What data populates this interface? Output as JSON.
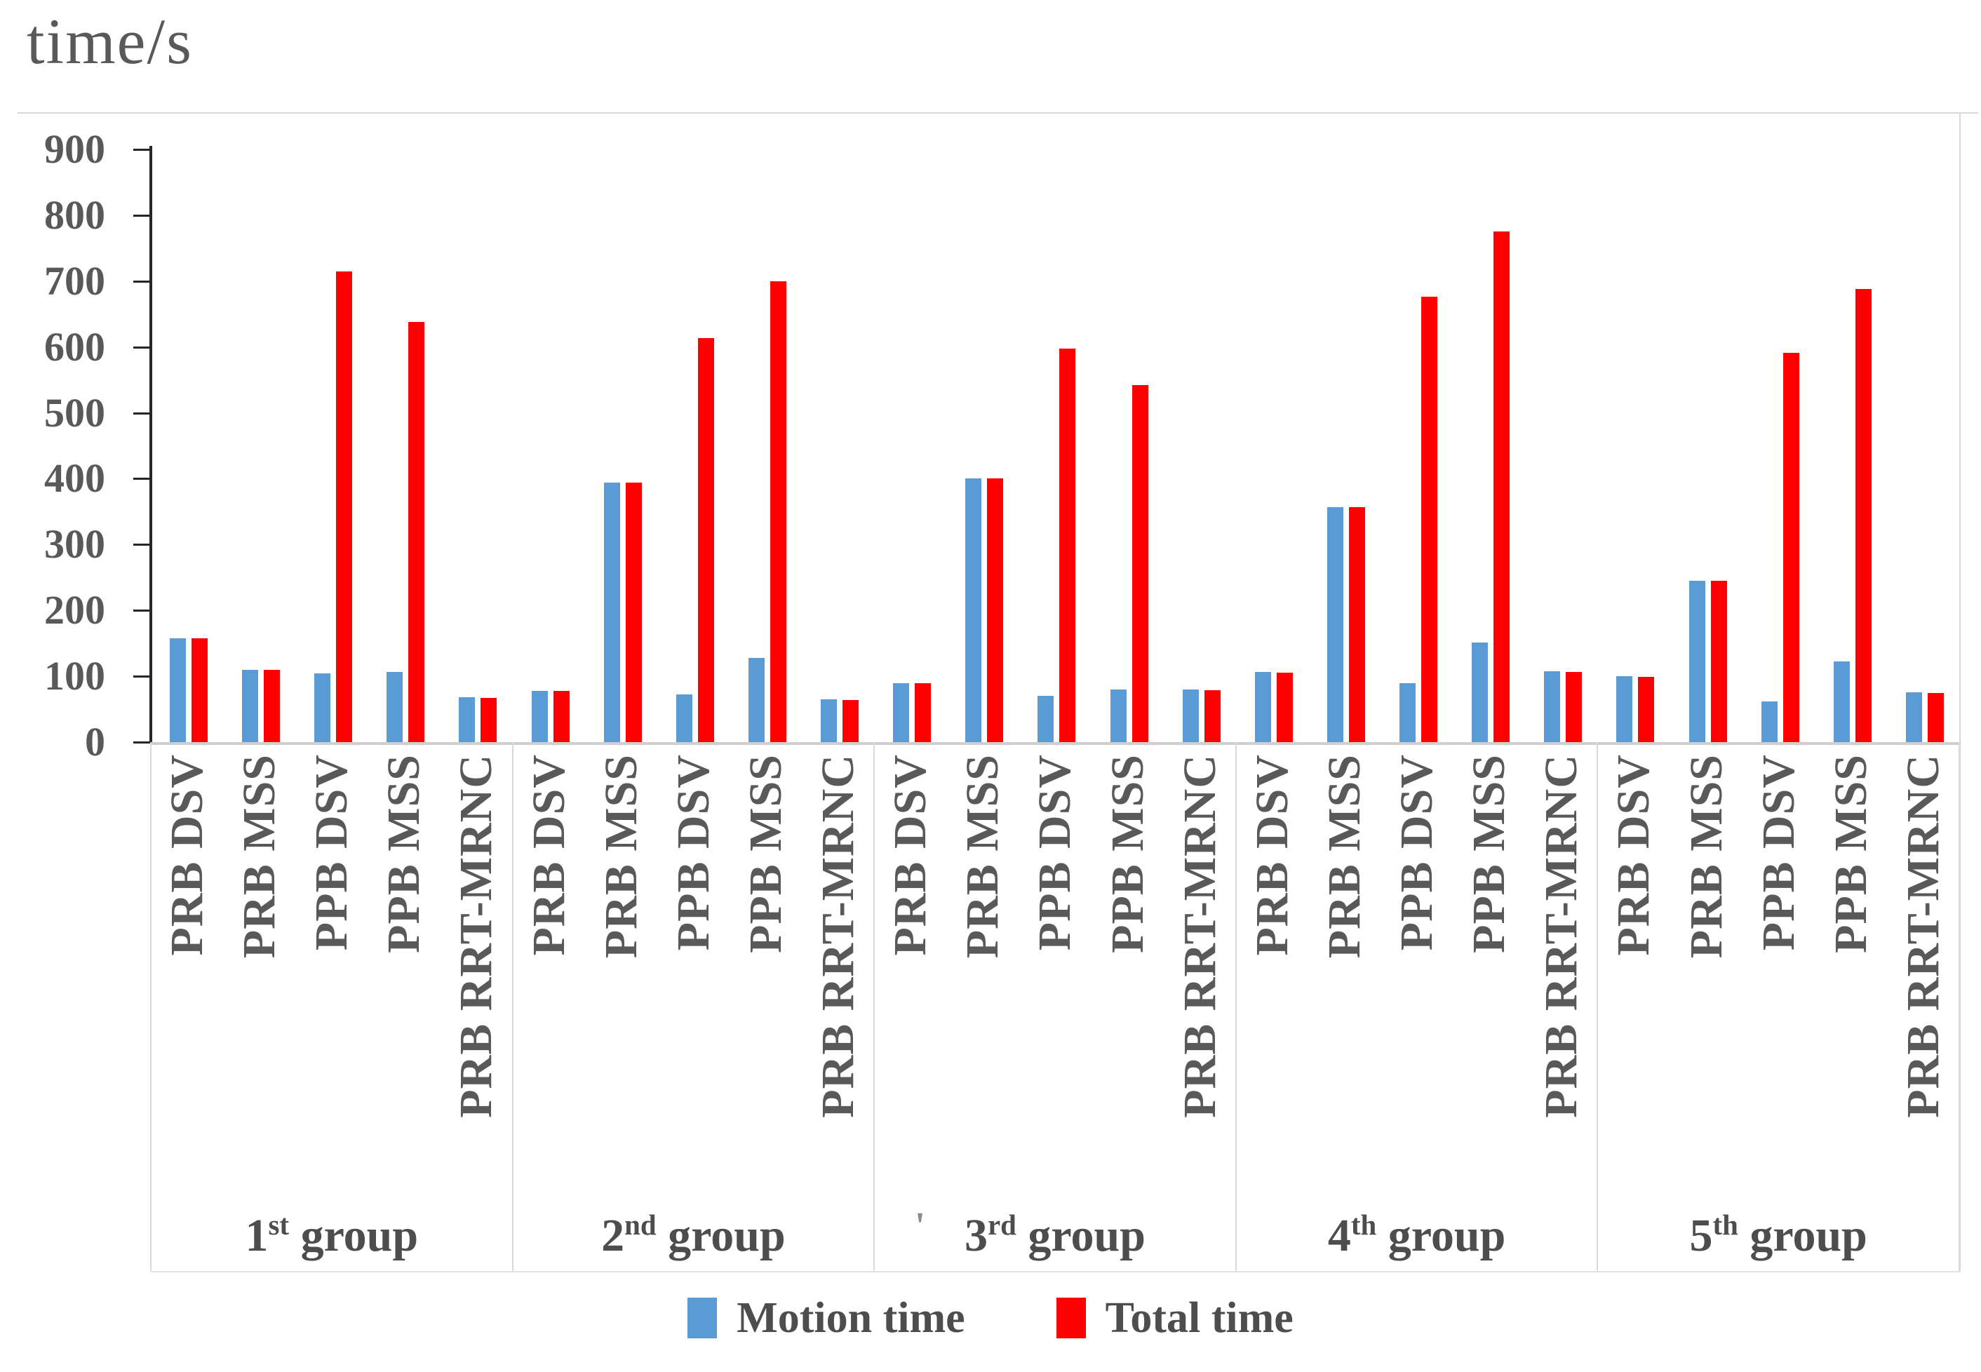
{
  "title": "time/s",
  "legend": {
    "items": [
      {
        "label": "Motion time",
        "color": "#5B9BD5"
      },
      {
        "label": "Total time",
        "color": "#FF0000"
      }
    ],
    "position": "bottom"
  },
  "colors": {
    "motion_time": "#5B9BD5",
    "total_time": "#FF0000",
    "axis": "#262626",
    "grid_light": "#D9D9D9",
    "text_gray": "#595959",
    "text_dark": "#4D4D4D",
    "background": "#FFFFFF"
  },
  "artifact_mark": "'",
  "chart_data": {
    "type": "bar",
    "title": "time/s",
    "ylabel": "time/s",
    "xlabel": "",
    "ylim": [
      0,
      900
    ],
    "ytick_step": 100,
    "ytick_labels": [
      "900",
      "800",
      "700",
      "600",
      "500",
      "400",
      "300",
      "200",
      "100",
      "0"
    ],
    "grid": false,
    "legend_position": "bottom",
    "categories_per_group": [
      "PRB DSV",
      "PRB MSS",
      "PPB DSV",
      "PPB MSS",
      "PRB RRT-MRNC"
    ],
    "groups": [
      {
        "label": "1st group",
        "ordinal": "1",
        "suffix": "st",
        "word": "group"
      },
      {
        "label": "2nd group",
        "ordinal": "2",
        "suffix": "nd",
        "word": "group"
      },
      {
        "label": "3rd group",
        "ordinal": "3",
        "suffix": "rd",
        "word": "group"
      },
      {
        "label": "4th group",
        "ordinal": "4",
        "suffix": "th",
        "word": "group"
      },
      {
        "label": "5th group",
        "ordinal": "5",
        "suffix": "th",
        "word": "group"
      }
    ],
    "series": [
      {
        "name": "Motion time",
        "color": "#5B9BD5",
        "values": [
          [
            158,
            110,
            104,
            107,
            68
          ],
          [
            78,
            394,
            72,
            128,
            65
          ],
          [
            90,
            400,
            70,
            80,
            80
          ],
          [
            106,
            357,
            89,
            151,
            108
          ],
          [
            100,
            245,
            62,
            123,
            76
          ]
        ]
      },
      {
        "name": "Total time",
        "color": "#FF0000",
        "values": [
          [
            158,
            110,
            715,
            638,
            67
          ],
          [
            78,
            394,
            613,
            700,
            64
          ],
          [
            90,
            400,
            598,
            542,
            79
          ],
          [
            105,
            357,
            676,
            775,
            107
          ],
          [
            99,
            245,
            591,
            688,
            75
          ]
        ]
      }
    ]
  }
}
